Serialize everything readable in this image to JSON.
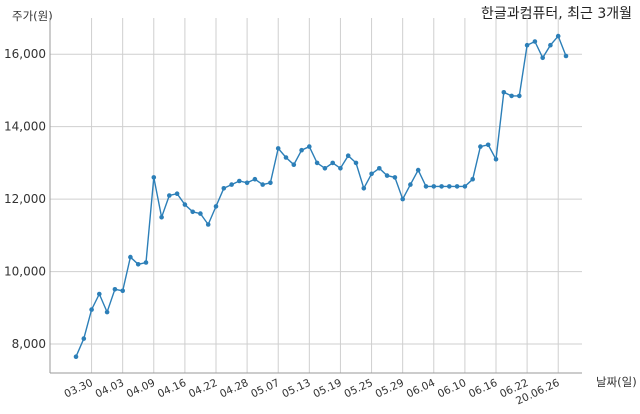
{
  "chart_data": {
    "type": "line",
    "title": "한글과컴퓨터, 최근 3개월",
    "ylabel": "주가(원)",
    "xlabel": "날짜(일)",
    "ylim": [
      7200,
      17000
    ],
    "yticks": [
      8000,
      10000,
      12000,
      14000,
      16000
    ],
    "ytick_labels": [
      "8,000",
      "10,000",
      "12,000",
      "14,000",
      "16,000"
    ],
    "xtick_labels": [
      {
        "index": 2,
        "label": "03.30"
      },
      {
        "index": 6,
        "label": "04.03"
      },
      {
        "index": 10,
        "label": "04.09"
      },
      {
        "index": 14,
        "label": "04.16"
      },
      {
        "index": 18,
        "label": "04.22"
      },
      {
        "index": 22,
        "label": "04.28"
      },
      {
        "index": 26,
        "label": "05.07"
      },
      {
        "index": 30,
        "label": "05.13"
      },
      {
        "index": 34,
        "label": "05.19"
      },
      {
        "index": 38,
        "label": "05.25"
      },
      {
        "index": 42,
        "label": "05.29"
      },
      {
        "index": 46,
        "label": "06.04"
      },
      {
        "index": 50,
        "label": "06.10"
      },
      {
        "index": 54,
        "label": "06.16"
      },
      {
        "index": 58,
        "label": "06.22"
      },
      {
        "index": 62,
        "label": "20.06.26"
      }
    ],
    "grid": true,
    "line_color": "#2c7fb8",
    "values": [
      7650,
      8150,
      8950,
      9380,
      8880,
      9510,
      9470,
      10400,
      10200,
      10250,
      12600,
      11500,
      12100,
      12150,
      11850,
      11650,
      11600,
      11300,
      11800,
      12300,
      12400,
      12500,
      12450,
      12550,
      12400,
      12450,
      13400,
      13150,
      12950,
      13350,
      13450,
      13000,
      12850,
      13000,
      12850,
      13200,
      13000,
      12300,
      12700,
      12850,
      12650,
      12600,
      12000,
      12400,
      12800,
      12350,
      12350,
      12350,
      12350,
      12350,
      12350,
      12550,
      13450,
      13500,
      13100,
      14950,
      14850,
      14850,
      16250,
      16350,
      15900,
      16250,
      16500,
      15950
    ]
  }
}
